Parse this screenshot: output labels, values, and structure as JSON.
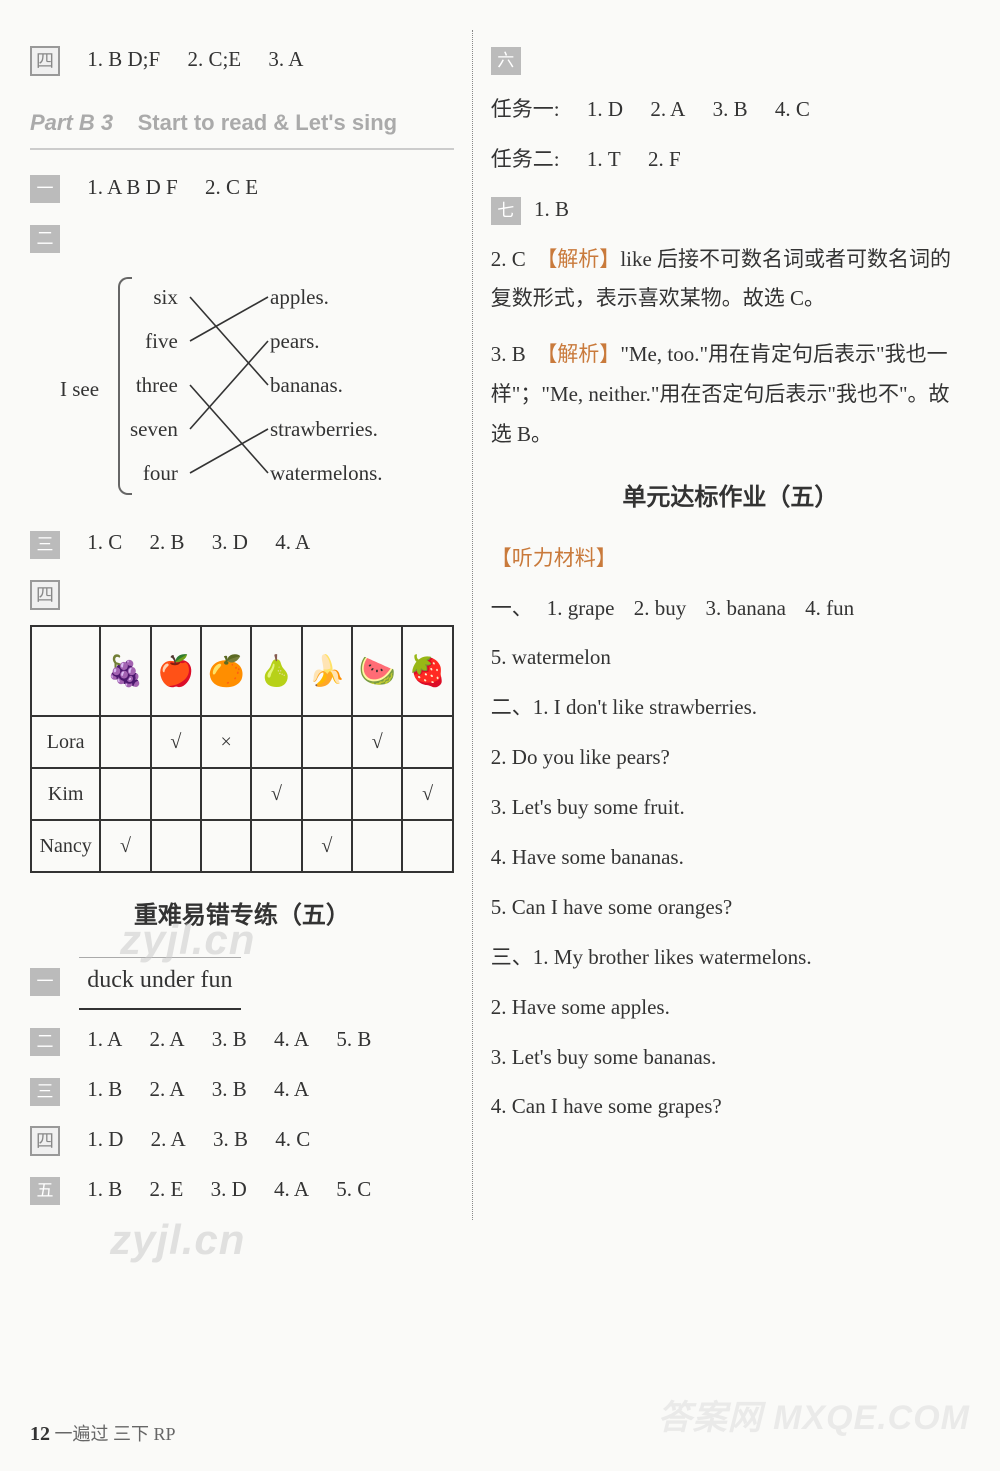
{
  "left": {
    "s4_top": {
      "marker": "四",
      "items": [
        "1. B D;F",
        "2. C;E",
        "3. A"
      ]
    },
    "partB": {
      "num": "Part B 3",
      "title": "Start to read & Let's sing"
    },
    "s1": {
      "marker": "一",
      "items": [
        "1. A B D F",
        "2. C E"
      ]
    },
    "s2": {
      "marker": "二",
      "isee": "I see",
      "left_words": [
        "six",
        "five",
        "three",
        "seven",
        "four"
      ],
      "right_words": [
        "apples.",
        "pears.",
        "bananas.",
        "strawberries.",
        "watermelons."
      ],
      "edges": [
        [
          0,
          2
        ],
        [
          1,
          0
        ],
        [
          2,
          4
        ],
        [
          3,
          1
        ],
        [
          4,
          3
        ]
      ],
      "line_color": "#333"
    },
    "s3": {
      "marker": "三",
      "items": [
        "1. C",
        "2. B",
        "3. D",
        "4. A"
      ]
    },
    "s4": {
      "marker": "四",
      "headers": [
        "",
        "🍇",
        "🍎",
        "🍊",
        "🍐",
        "🍌",
        "🍉",
        "🍓"
      ],
      "rows": [
        {
          "name": "Lora",
          "cells": [
            "",
            "√",
            "×",
            "",
            "",
            "√",
            ""
          ]
        },
        {
          "name": "Kim",
          "cells": [
            "",
            "",
            "",
            "√",
            "",
            "",
            "√"
          ]
        },
        {
          "name": "Nancy",
          "cells": [
            "√",
            "",
            "",
            "",
            "√",
            "",
            ""
          ]
        }
      ]
    },
    "zhuanlian_head": "重难易错专练（五）",
    "z1": {
      "marker": "一",
      "cursive": "duck  under  fun"
    },
    "z2": {
      "marker": "二",
      "items": [
        "1. A",
        "2. A",
        "3. B",
        "4. A",
        "5. B"
      ]
    },
    "z3": {
      "marker": "三",
      "items": [
        "1. B",
        "2. A",
        "3. B",
        "4. A"
      ]
    },
    "z4": {
      "marker": "四",
      "items": [
        "1. D",
        "2. A",
        "3. B",
        "4. C"
      ]
    },
    "z5": {
      "marker": "五",
      "items": [
        "1. B",
        "2. E",
        "3. D",
        "4. A",
        "5. C"
      ]
    }
  },
  "right": {
    "s6": {
      "marker": "六",
      "task1_label": "任务一:",
      "task1": [
        "1. D",
        "2. A",
        "3. B",
        "4. C"
      ],
      "task2_label": "任务二:",
      "task2": [
        "1. T",
        "2. F"
      ]
    },
    "s7": {
      "marker": "七",
      "a1": "1. B",
      "a2_num": "2. C",
      "a2_tag": "【解析】",
      "a2_text": "like 后接不可数名词或者可数名词的复数形式，表示喜欢某物。故选 C。",
      "a3_num": "3. B",
      "a3_tag": "【解析】",
      "a3_text": "\"Me, too.\"用在肯定句后表示\"我也一样\"；\"Me, neither.\"用在否定句后表示\"我也不\"。故选 B。"
    },
    "unit_head": "单元达标作业（五）",
    "tingli_label": "【听力材料】",
    "t1": {
      "marker": "一、",
      "items": [
        "1. grape",
        "2. buy",
        "3. banana",
        "4. fun",
        "5. watermelon"
      ]
    },
    "t2": {
      "marker": "二、",
      "sentences": [
        "1. I don't like strawberries.",
        "2. Do you like pears?",
        "3. Let's buy some fruit.",
        "4. Have some bananas.",
        "5. Can I have some oranges?"
      ]
    },
    "t3": {
      "marker": "三、",
      "sentences": [
        "1. My brother likes watermelons.",
        "2. Have some apples.",
        "3. Let's buy some bananas.",
        "4. Can I have some grapes?"
      ]
    }
  },
  "footer": {
    "page": "12",
    "rest": " 一遍过 三下 RP"
  },
  "watermarks": {
    "a": "zyjl.cn",
    "b": "zyjl.cn",
    "c": "答案网 MXQE.COM"
  }
}
